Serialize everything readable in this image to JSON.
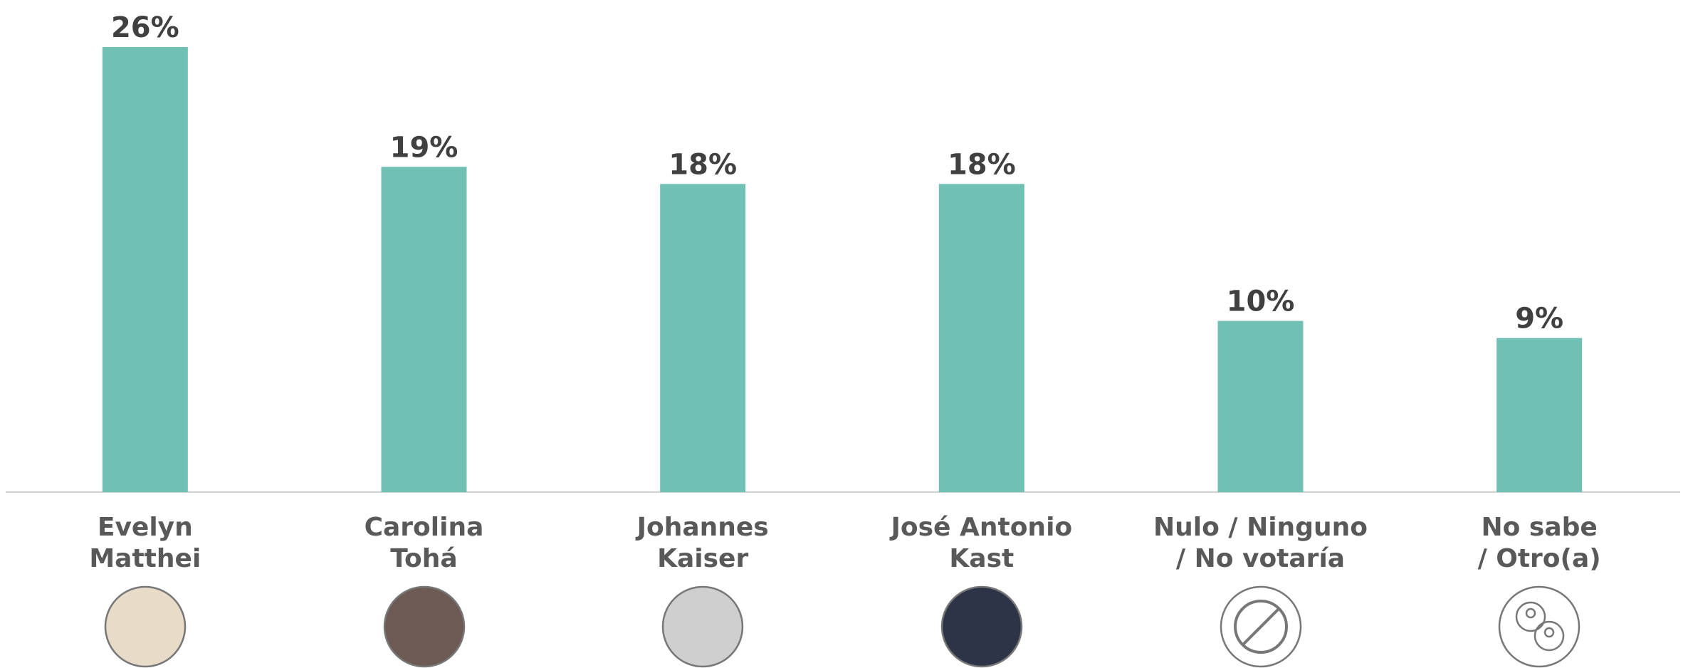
{
  "chart_data": {
    "type": "bar",
    "categories": [
      "Evelyn\nMatthei",
      "Carolina\nTohá",
      "Johannes\nKaiser",
      "José Antonio\nKast",
      "Nulo / Ninguno\n/ No votaría",
      "No sabe\n/ Otro(a)"
    ],
    "values": [
      26,
      19,
      18,
      18,
      10,
      9
    ],
    "value_labels": [
      "26%",
      "19%",
      "18%",
      "18%",
      "10%",
      "9%"
    ],
    "color": "#70c1b3",
    "ylim": [
      0,
      26
    ]
  }
}
